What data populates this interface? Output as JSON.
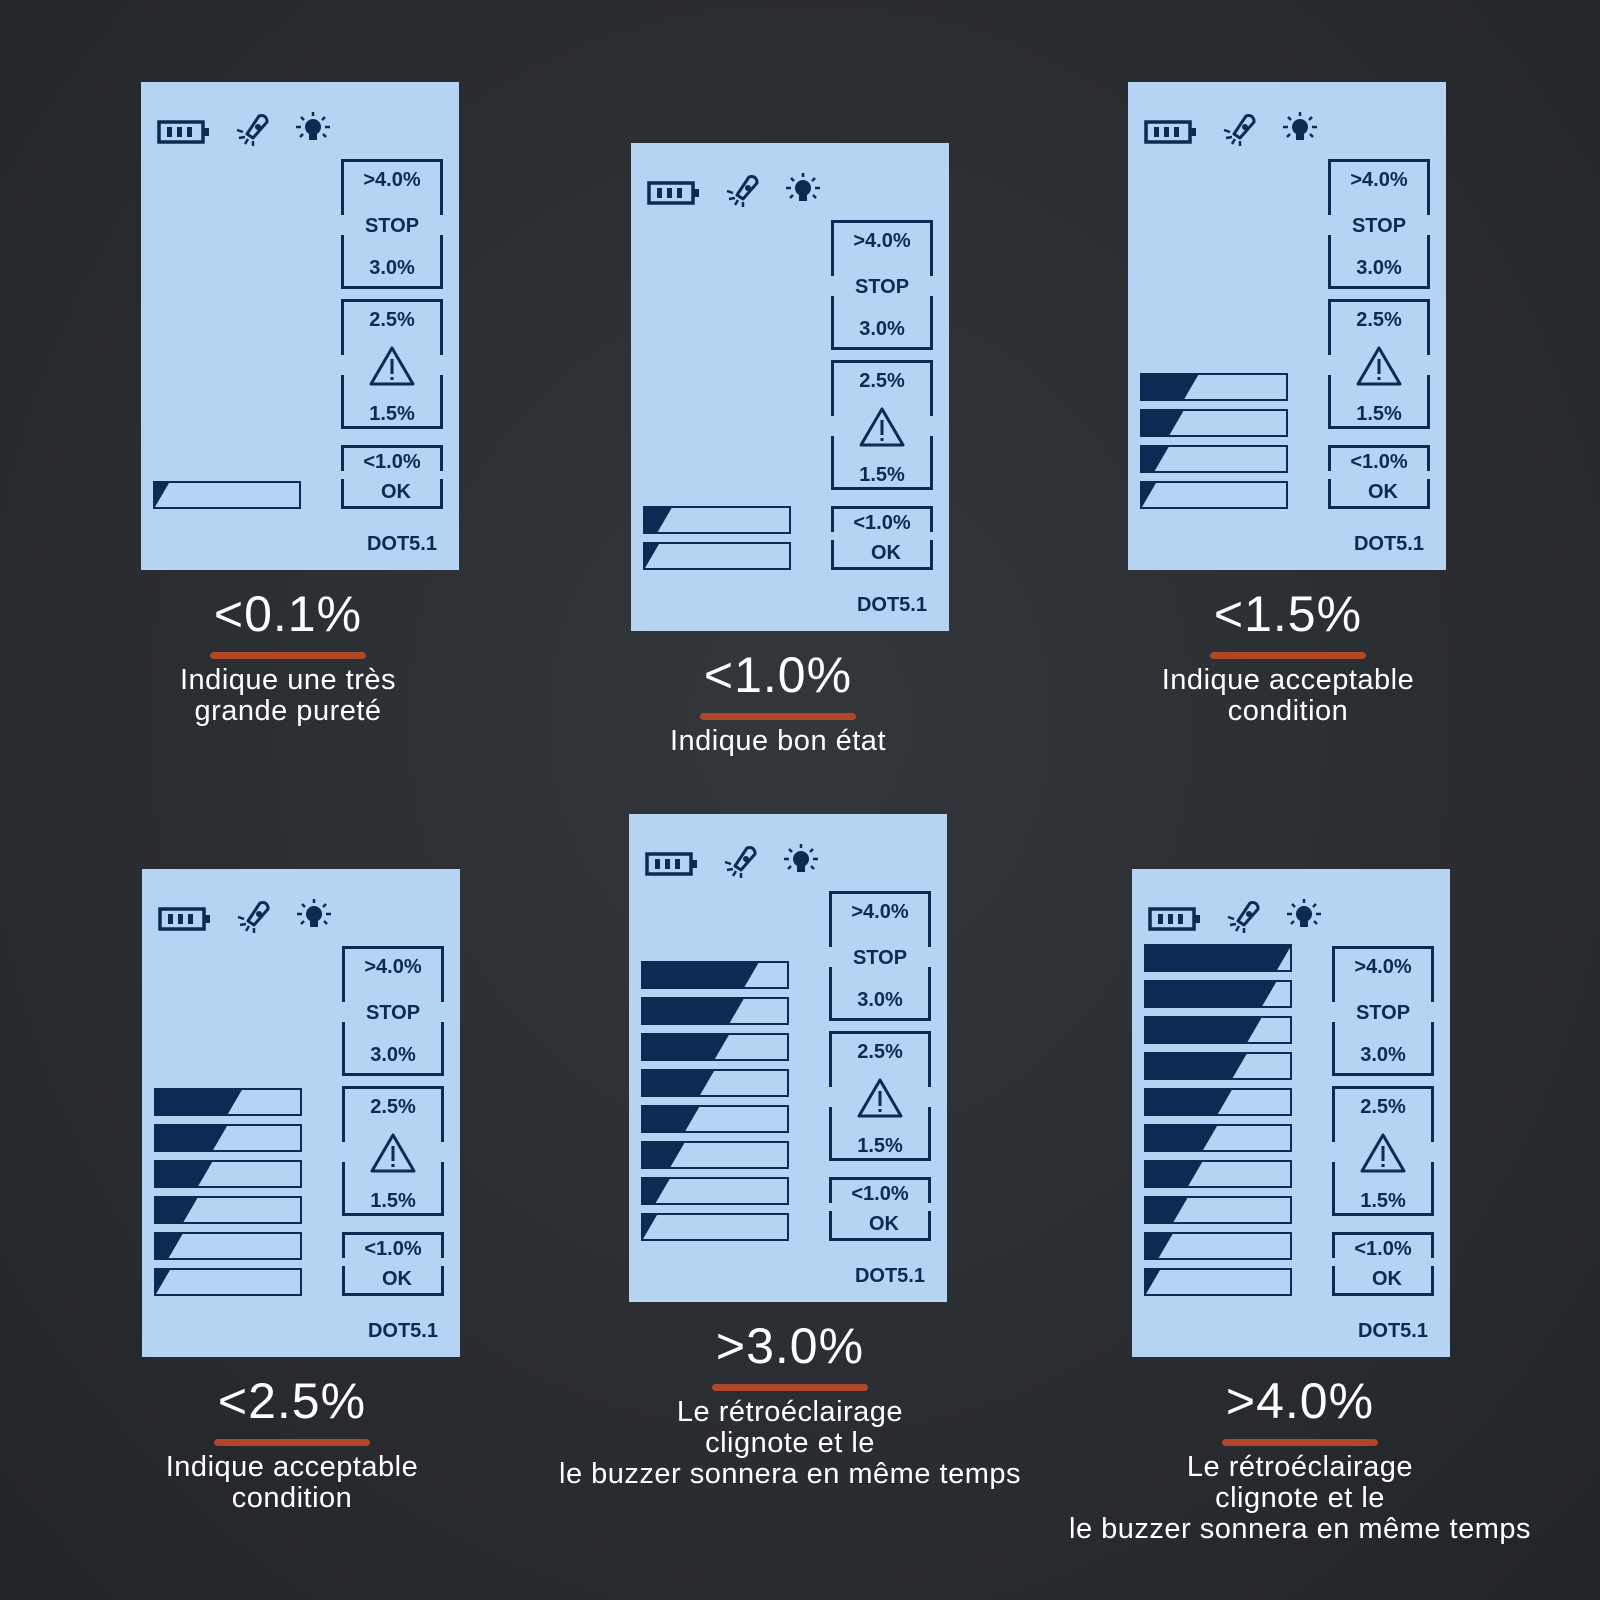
{
  "colors": {
    "background": "#2a2d31",
    "lcd": "#b6d3f3",
    "ink": "#0c2a52",
    "accent": "#b0472a",
    "caption": "#ffffff"
  },
  "icons": [
    "battery-icon",
    "buzzer-icon",
    "backlight-bulb-icon"
  ],
  "panels": [
    {
      "id": "p1",
      "labels": {
        "stop_top": ">4.0%",
        "stop": "STOP",
        "stop_bottom": "3.0%",
        "warn_top": "2.5%",
        "warn_bottom": "1.5%",
        "ok_top": "<1.0%",
        "ok": "OK",
        "model": "DOT5.1"
      },
      "bar_levels": [
        0.05
      ],
      "caption": {
        "value": "<0.1%",
        "desc_lines": [
          "Indique une très",
          "grande pureté"
        ]
      }
    },
    {
      "id": "p2",
      "labels": {
        "stop_top": ">4.0%",
        "stop": "STOP",
        "stop_bottom": "3.0%",
        "warn_top": "2.5%",
        "warn_bottom": "1.5%",
        "ok_top": "<1.0%",
        "ok": "OK",
        "model": "DOT5.1"
      },
      "bar_levels": [
        0.18,
        0.05
      ],
      "caption": {
        "value": "<1.0%",
        "desc_lines": [
          "Indique bon état"
        ]
      }
    },
    {
      "id": "p3",
      "labels": {
        "stop_top": ">4.0%",
        "stop": "STOP",
        "stop_bottom": "3.0%",
        "warn_top": "2.5%",
        "warn_bottom": "1.5%",
        "ok_top": "<1.0%",
        "ok": "OK",
        "model": "DOT5.1"
      },
      "bar_levels": [
        0.38,
        0.28,
        0.18,
        0.05
      ],
      "caption": {
        "value": "<1.5%",
        "desc_lines": [
          "Indique acceptable",
          "condition"
        ]
      }
    },
    {
      "id": "p4",
      "labels": {
        "stop_top": ">4.0%",
        "stop": "STOP",
        "stop_bottom": "3.0%",
        "warn_top": "2.5%",
        "warn_bottom": "1.5%",
        "ok_top": "<1.0%",
        "ok": "OK",
        "model": "DOT5.1"
      },
      "bar_levels": [
        0.58,
        0.48,
        0.38,
        0.28,
        0.18,
        0.05
      ],
      "caption": {
        "value": "<2.5%",
        "desc_lines": [
          "Indique acceptable",
          "condition"
        ]
      }
    },
    {
      "id": "p5",
      "labels": {
        "stop_top": ">4.0%",
        "stop": "STOP",
        "stop_bottom": "3.0%",
        "warn_top": "2.5%",
        "warn_bottom": "1.5%",
        "ok_top": "<1.0%",
        "ok": "OK",
        "model": "DOT5.1"
      },
      "bar_levels": [
        0.78,
        0.68,
        0.58,
        0.48,
        0.38,
        0.28,
        0.18,
        0.05
      ],
      "caption": {
        "value": ">3.0%",
        "desc_lines": [
          "Le rétroéclairage",
          "clignote et le",
          "le buzzer sonnera en même temps"
        ]
      }
    },
    {
      "id": "p6",
      "labels": {
        "stop_top": ">4.0%",
        "stop": "STOP",
        "stop_bottom": "3.0%",
        "warn_top": "2.5%",
        "warn_bottom": "1.5%",
        "ok_top": "<1.0%",
        "ok": "OK",
        "model": "DOT5.1"
      },
      "bar_levels": [
        0.98,
        0.88,
        0.78,
        0.68,
        0.58,
        0.48,
        0.38,
        0.28,
        0.18,
        0.05
      ],
      "caption": {
        "value": ">4.0%",
        "desc_lines": [
          "Le rétroéclairage",
          "clignote et le",
          "le buzzer sonnera en même temps"
        ]
      }
    }
  ]
}
